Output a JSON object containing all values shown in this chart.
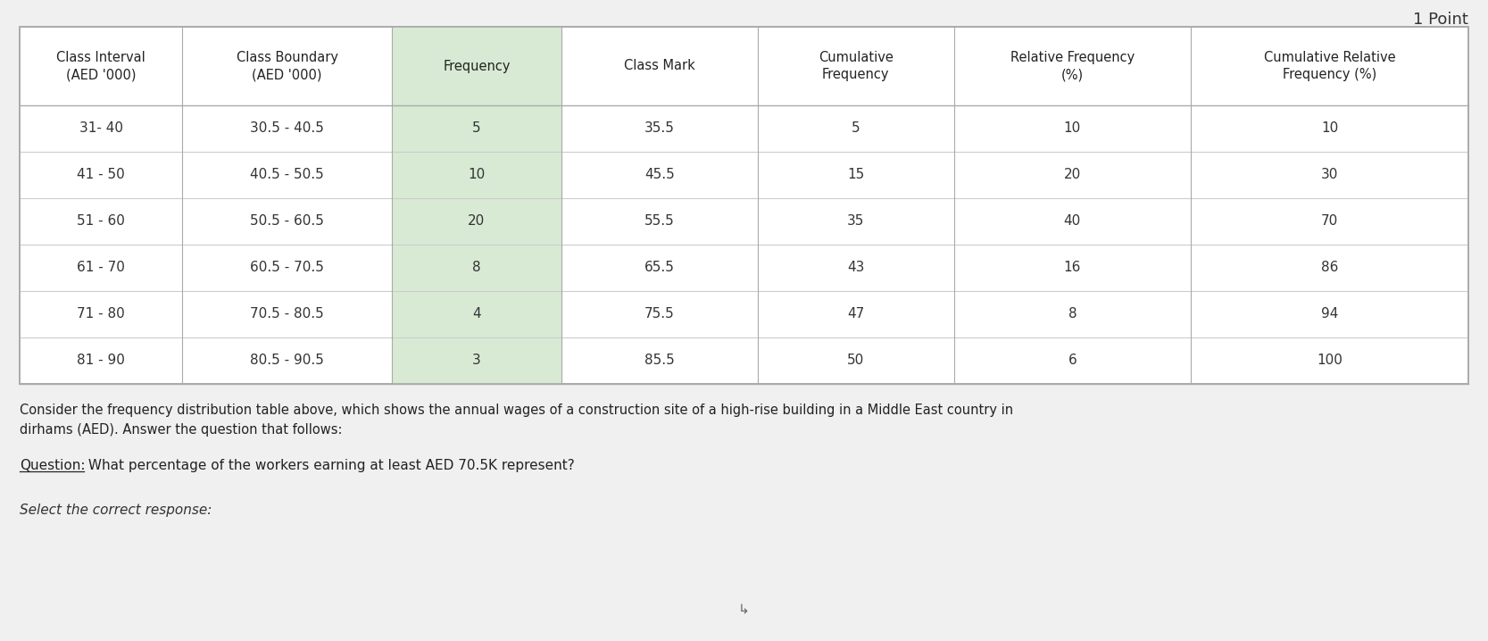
{
  "title_top_right": "1 Point",
  "headers": [
    "Class Interval\n(AED '000)",
    "Class Boundary\n(AED '000)",
    "Frequency",
    "Class Mark",
    "Cumulative\nFrequency",
    "Relative Frequency\n(%)",
    "Cumulative Relative\nFrequency (%)"
  ],
  "rows": [
    [
      "31- 40",
      "30.5 - 40.5",
      "5",
      "35.5",
      "5",
      "10",
      "10"
    ],
    [
      "41 - 50",
      "40.5 - 50.5",
      "10",
      "45.5",
      "15",
      "20",
      "30"
    ],
    [
      "51 - 60",
      "50.5 - 60.5",
      "20",
      "55.5",
      "35",
      "40",
      "70"
    ],
    [
      "61 - 70",
      "60.5 - 70.5",
      "8",
      "65.5",
      "43",
      "16",
      "86"
    ],
    [
      "71 - 80",
      "70.5 - 80.5",
      "4",
      "75.5",
      "47",
      "8",
      "94"
    ],
    [
      "81 - 90",
      "80.5 - 90.5",
      "3",
      "85.5",
      "50",
      "6",
      "100"
    ]
  ],
  "freq_col_bg": "#d4e8d0",
  "bg_color": "#f0f0f0",
  "table_bg": "#ffffff",
  "description_line1": "Consider the frequency distribution table above, which shows the annual wages of a construction site of a high-rise building in a Middle East country in",
  "description_line2": "dirhams (AED). Answer the question that follows:",
  "question_label": "Question:",
  "question_text": " What percentage of the workers earning at least AED 70.5K represent?",
  "answer_label": "Select the correct response:"
}
